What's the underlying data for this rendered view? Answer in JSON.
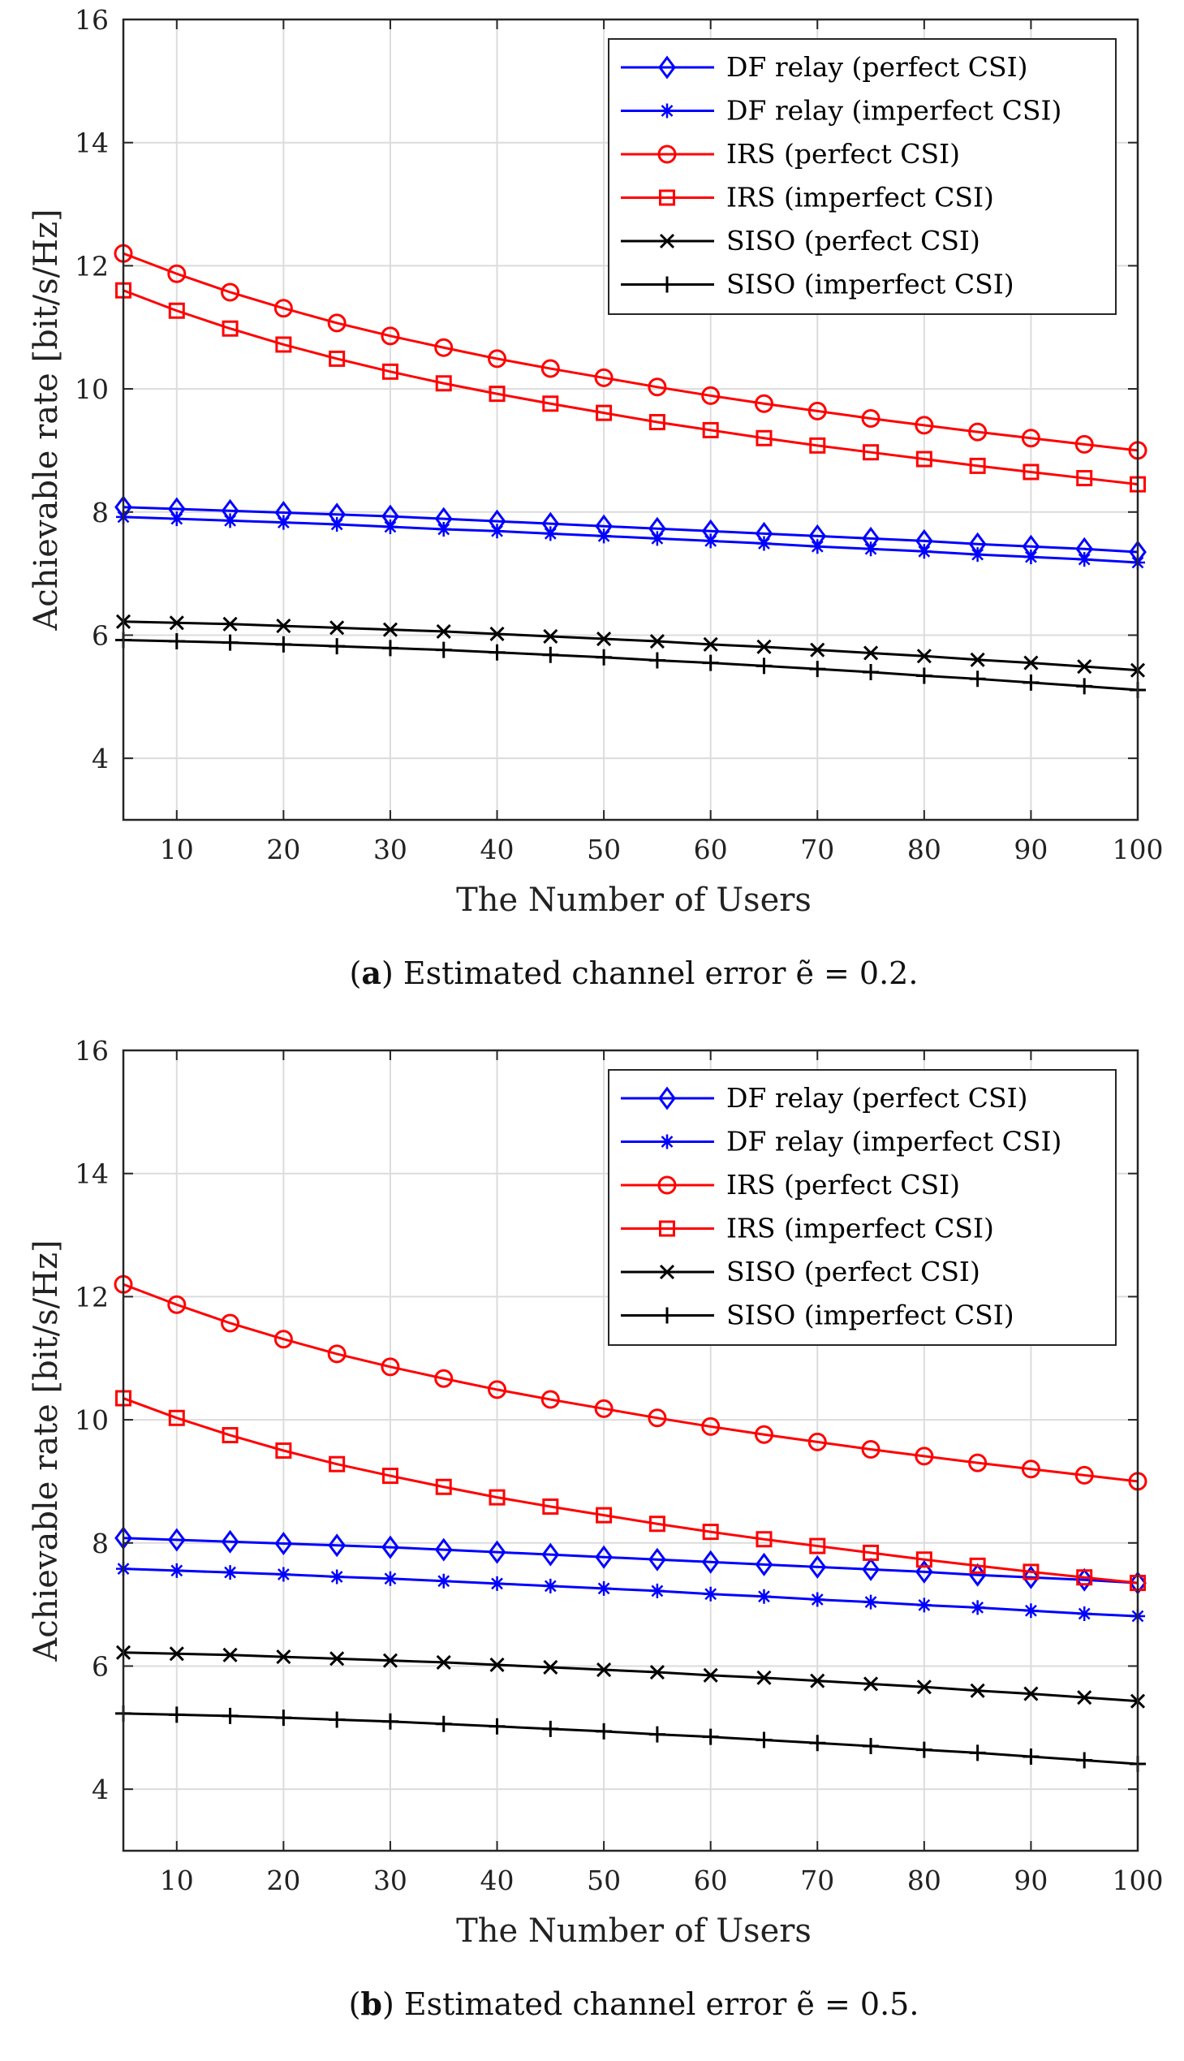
{
  "chart_data": [
    {
      "type": "line",
      "caption_label": "a",
      "caption_text": "Estimated channel error ẽ = 0.2.",
      "xlabel": "The Number of Users",
      "ylabel": "Achievable rate [bit/s/Hz]",
      "xlim": [
        5,
        100
      ],
      "ylim": [
        3,
        16
      ],
      "xticks": [
        10,
        20,
        30,
        40,
        50,
        60,
        70,
        80,
        90,
        100
      ],
      "yticks": [
        4,
        6,
        8,
        10,
        12,
        14,
        16
      ],
      "grid": true,
      "legend_position": "top-right",
      "x": [
        5,
        10,
        15,
        20,
        25,
        30,
        35,
        40,
        45,
        50,
        55,
        60,
        65,
        70,
        75,
        80,
        85,
        90,
        95,
        100
      ],
      "series": [
        {
          "name": "DF relay (perfect CSI)",
          "color": "#0000ff",
          "marker": "diamond",
          "values": [
            8.08,
            8.05,
            8.02,
            7.99,
            7.96,
            7.93,
            7.89,
            7.85,
            7.81,
            7.77,
            7.73,
            7.69,
            7.65,
            7.61,
            7.57,
            7.53,
            7.48,
            7.44,
            7.4,
            7.35
          ]
        },
        {
          "name": "DF relay (imperfect CSI)",
          "color": "#0000ff",
          "marker": "asterisk",
          "values": [
            7.92,
            7.89,
            7.86,
            7.83,
            7.8,
            7.76,
            7.72,
            7.69,
            7.65,
            7.61,
            7.57,
            7.53,
            7.49,
            7.44,
            7.4,
            7.36,
            7.31,
            7.27,
            7.23,
            7.18
          ]
        },
        {
          "name": "IRS (perfect CSI)",
          "color": "#ff0000",
          "marker": "circle",
          "values": [
            12.2,
            11.87,
            11.57,
            11.31,
            11.07,
            10.86,
            10.67,
            10.49,
            10.33,
            10.18,
            10.03,
            9.89,
            9.76,
            9.64,
            9.52,
            9.41,
            9.3,
            9.2,
            9.1,
            9.0
          ]
        },
        {
          "name": "IRS (imperfect CSI)",
          "color": "#ff0000",
          "marker": "square",
          "values": [
            11.6,
            11.27,
            10.98,
            10.72,
            10.49,
            10.28,
            10.09,
            9.92,
            9.76,
            9.61,
            9.46,
            9.33,
            9.2,
            9.08,
            8.97,
            8.86,
            8.75,
            8.65,
            8.55,
            8.45
          ]
        },
        {
          "name": "SISO (perfect CSI)",
          "color": "#000000",
          "marker": "x",
          "values": [
            6.22,
            6.2,
            6.18,
            6.15,
            6.12,
            6.09,
            6.06,
            6.02,
            5.98,
            5.94,
            5.9,
            5.85,
            5.81,
            5.76,
            5.71,
            5.66,
            5.6,
            5.55,
            5.49,
            5.43
          ]
        },
        {
          "name": "SISO (imperfect CSI)",
          "color": "#000000",
          "marker": "plus",
          "values": [
            5.92,
            5.9,
            5.88,
            5.85,
            5.82,
            5.79,
            5.76,
            5.72,
            5.68,
            5.64,
            5.59,
            5.55,
            5.5,
            5.45,
            5.4,
            5.34,
            5.29,
            5.23,
            5.17,
            5.11
          ]
        }
      ]
    },
    {
      "type": "line",
      "caption_label": "b",
      "caption_text": "Estimated channel error ẽ = 0.5.",
      "xlabel": "The Number of Users",
      "ylabel": "Achievable rate [bit/s/Hz]",
      "xlim": [
        5,
        100
      ],
      "ylim": [
        3,
        16
      ],
      "xticks": [
        10,
        20,
        30,
        40,
        50,
        60,
        70,
        80,
        90,
        100
      ],
      "yticks": [
        4,
        6,
        8,
        10,
        12,
        14,
        16
      ],
      "grid": true,
      "legend_position": "top-right",
      "x": [
        5,
        10,
        15,
        20,
        25,
        30,
        35,
        40,
        45,
        50,
        55,
        60,
        65,
        70,
        75,
        80,
        85,
        90,
        95,
        100
      ],
      "series": [
        {
          "name": "DF relay (perfect CSI)",
          "color": "#0000ff",
          "marker": "diamond",
          "values": [
            8.08,
            8.05,
            8.02,
            7.99,
            7.96,
            7.93,
            7.89,
            7.85,
            7.81,
            7.77,
            7.73,
            7.69,
            7.65,
            7.61,
            7.57,
            7.53,
            7.48,
            7.44,
            7.4,
            7.35
          ]
        },
        {
          "name": "DF relay (imperfect CSI)",
          "color": "#0000ff",
          "marker": "asterisk",
          "values": [
            7.58,
            7.55,
            7.52,
            7.49,
            7.45,
            7.42,
            7.38,
            7.34,
            7.3,
            7.26,
            7.22,
            7.17,
            7.13,
            7.08,
            7.04,
            6.99,
            6.95,
            6.9,
            6.85,
            6.81
          ]
        },
        {
          "name": "IRS (perfect CSI)",
          "color": "#ff0000",
          "marker": "circle",
          "values": [
            12.2,
            11.87,
            11.57,
            11.31,
            11.07,
            10.86,
            10.67,
            10.49,
            10.33,
            10.18,
            10.03,
            9.89,
            9.76,
            9.64,
            9.52,
            9.41,
            9.3,
            9.2,
            9.1,
            9.0
          ]
        },
        {
          "name": "IRS (imperfect CSI)",
          "color": "#ff0000",
          "marker": "square",
          "values": [
            10.35,
            10.03,
            9.75,
            9.5,
            9.28,
            9.09,
            8.91,
            8.74,
            8.59,
            8.45,
            8.31,
            8.18,
            8.06,
            7.95,
            7.84,
            7.73,
            7.63,
            7.53,
            7.44,
            7.35
          ]
        },
        {
          "name": "SISO (perfect CSI)",
          "color": "#000000",
          "marker": "x",
          "values": [
            6.22,
            6.2,
            6.18,
            6.15,
            6.12,
            6.09,
            6.06,
            6.02,
            5.98,
            5.94,
            5.9,
            5.85,
            5.81,
            5.76,
            5.71,
            5.66,
            5.6,
            5.55,
            5.49,
            5.43
          ]
        },
        {
          "name": "SISO (imperfect CSI)",
          "color": "#000000",
          "marker": "plus",
          "values": [
            5.23,
            5.21,
            5.19,
            5.16,
            5.13,
            5.1,
            5.06,
            5.02,
            4.98,
            4.94,
            4.89,
            4.85,
            4.8,
            4.75,
            4.7,
            4.64,
            4.59,
            4.53,
            4.47,
            4.41
          ]
        }
      ]
    }
  ]
}
